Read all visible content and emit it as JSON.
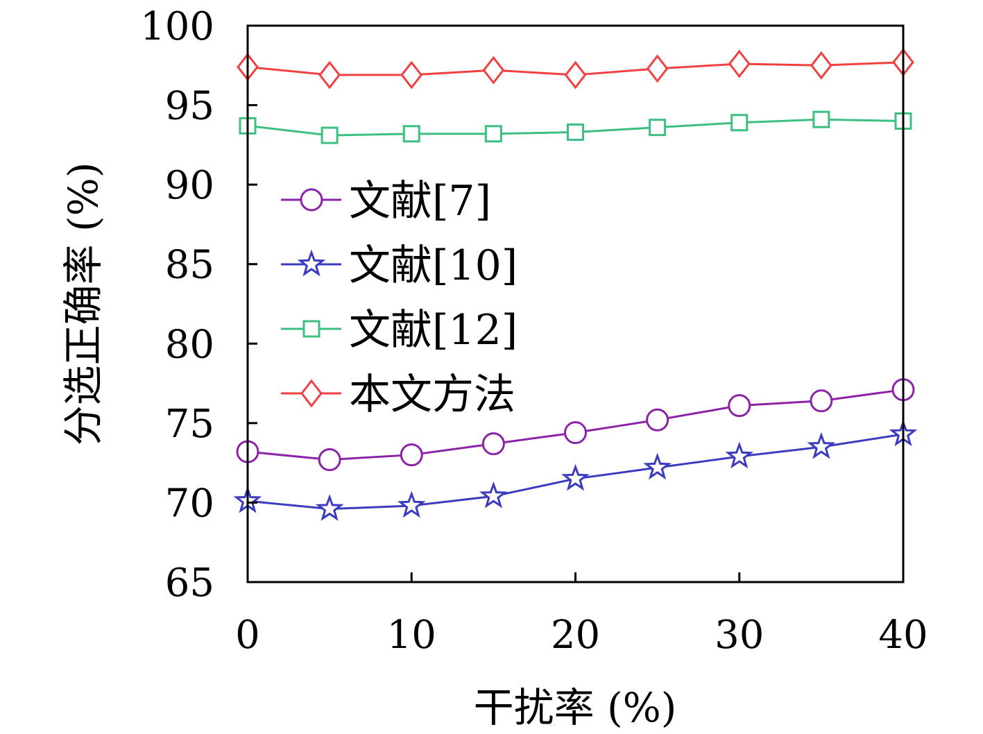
{
  "chart_data": {
    "type": "line",
    "title": "",
    "xlabel": "干扰率 (%)",
    "ylabel": "分选正确率 (%)",
    "xlim": [
      0,
      40
    ],
    "ylim": [
      65,
      100
    ],
    "xticks": [
      0,
      10,
      20,
      30,
      40
    ],
    "yticks": [
      65,
      70,
      75,
      80,
      85,
      90,
      95,
      100
    ],
    "grid": false,
    "legend_position": "center-left",
    "x": [
      0,
      5,
      10,
      15,
      20,
      25,
      30,
      35,
      40
    ],
    "series": [
      {
        "name": "文献[7]",
        "color": "#8b22a8",
        "marker": "circle",
        "values": [
          73.2,
          72.7,
          73.0,
          73.7,
          74.4,
          75.2,
          76.1,
          76.4,
          77.1
        ]
      },
      {
        "name": "文献[10]",
        "color": "#3b3bbf",
        "marker": "star",
        "values": [
          70.1,
          69.6,
          69.8,
          70.4,
          71.5,
          72.2,
          72.9,
          73.5,
          74.3
        ]
      },
      {
        "name": "文献[12]",
        "color": "#3cbf7f",
        "marker": "square",
        "values": [
          93.7,
          93.1,
          93.2,
          93.2,
          93.3,
          93.6,
          93.9,
          94.1,
          94.0
        ]
      },
      {
        "name": "本文方法",
        "color": "#f04040",
        "marker": "diamond",
        "values": [
          97.4,
          96.9,
          96.9,
          97.2,
          96.9,
          97.3,
          97.6,
          97.5,
          97.7
        ]
      }
    ]
  }
}
